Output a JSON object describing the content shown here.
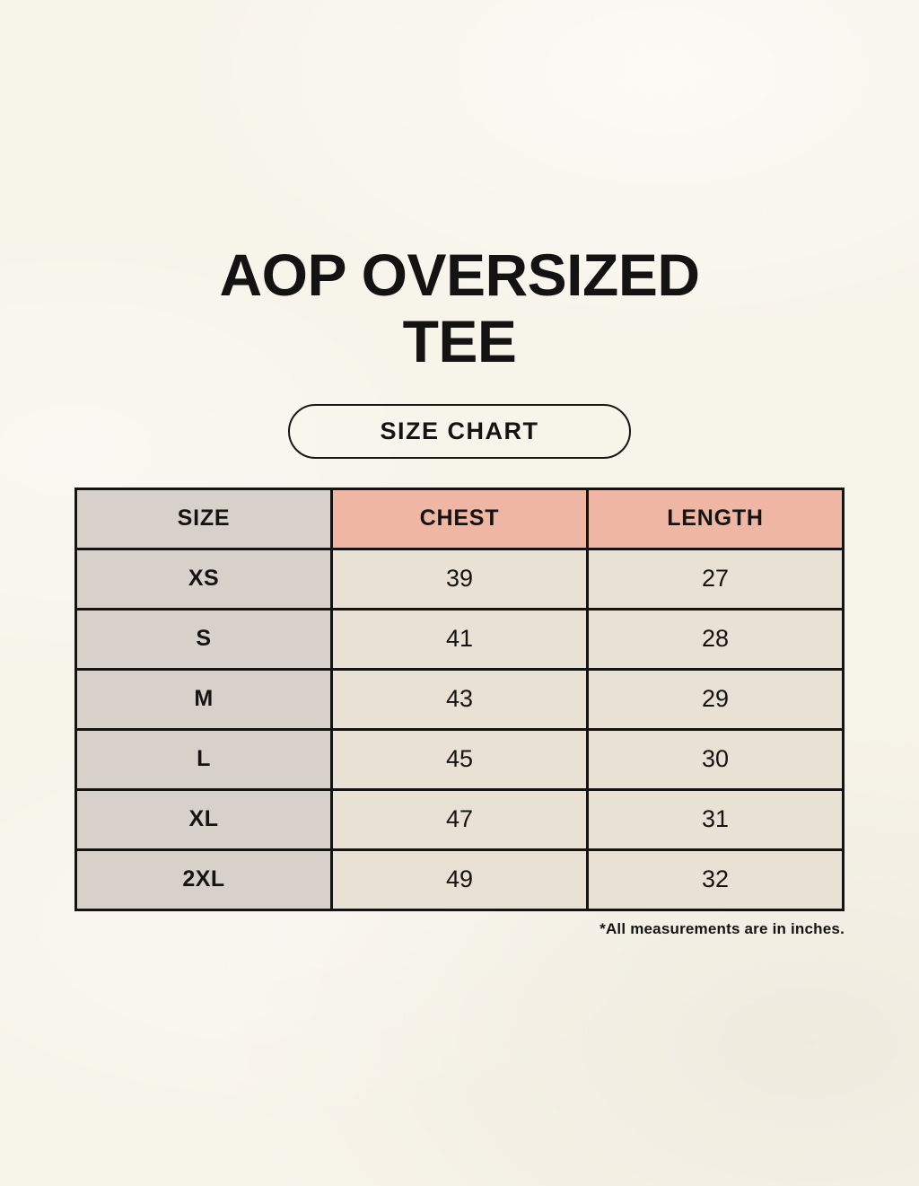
{
  "page": {
    "title": "AOP OVERSIZED TEE",
    "size_chart_button_label": "SIZE CHART",
    "footnote": "*All measurements are in inches."
  },
  "table": {
    "headers": [
      "SIZE",
      "CHEST",
      "LENGTH"
    ],
    "rows": [
      {
        "size": "XS",
        "chest": "39",
        "length": "27"
      },
      {
        "size": "S",
        "chest": "41",
        "length": "28"
      },
      {
        "size": "M",
        "chest": "43",
        "length": "29"
      },
      {
        "size": "L",
        "chest": "45",
        "length": "30"
      },
      {
        "size": "XL",
        "chest": "47",
        "length": "31"
      },
      {
        "size": "2XL",
        "chest": "49",
        "length": "32"
      }
    ]
  },
  "colors": {
    "page_background": "#f7f4ea",
    "header_accent": "#f0b6a4",
    "size_column": "#d8d1ca",
    "value_cell": "#e8e1d4",
    "border": "#141414",
    "text": "#141414"
  },
  "chart_data": {
    "type": "table",
    "title": "AOP OVERSIZED TEE",
    "subtitle": "SIZE CHART",
    "columns": [
      "SIZE",
      "CHEST",
      "LENGTH"
    ],
    "rows": [
      [
        "XS",
        39,
        27
      ],
      [
        "S",
        41,
        28
      ],
      [
        "M",
        43,
        29
      ],
      [
        "L",
        45,
        30
      ],
      [
        "XL",
        47,
        31
      ],
      [
        "2XL",
        49,
        32
      ]
    ],
    "units": "inches",
    "note": "*All measurements are in inches."
  }
}
